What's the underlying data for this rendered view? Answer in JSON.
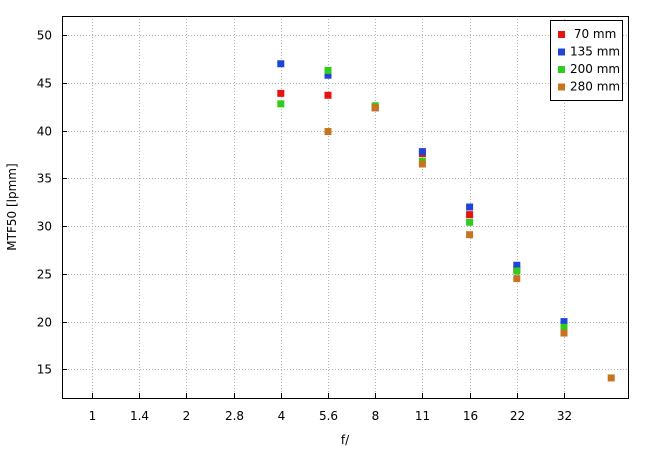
{
  "chart_data": {
    "type": "scatter",
    "xlabel": "f/",
    "ylabel": "MTF50 [lpmm]",
    "x_categories": [
      "1",
      "1.4",
      "2",
      "2.8",
      "4",
      "5.6",
      "8",
      "11",
      "16",
      "22",
      "32"
    ],
    "ylim": [
      12,
      52
    ],
    "y_ticks": [
      15,
      20,
      25,
      30,
      35,
      40,
      45,
      50
    ],
    "grid": true,
    "legend_position": "top-right",
    "series": [
      {
        "name": " 70 mm",
        "color": "#e8120f",
        "points": [
          [
            "4",
            43.9
          ],
          [
            "5.6",
            43.7
          ],
          [
            "8",
            42.4
          ],
          [
            "11",
            37.6
          ],
          [
            "16",
            31.2
          ],
          [
            "22",
            25.5
          ],
          [
            "32",
            19.5
          ]
        ]
      },
      {
        "name": "135 mm",
        "color": "#1f45d6",
        "points": [
          [
            "4",
            47.0
          ],
          [
            "5.6",
            45.8
          ],
          [
            "8",
            42.4
          ],
          [
            "11",
            37.8
          ],
          [
            "16",
            32.0
          ],
          [
            "22",
            25.9
          ],
          [
            "32",
            20.0
          ]
        ]
      },
      {
        "name": "200 mm",
        "color": "#2ecc1c",
        "points": [
          [
            "4",
            42.8
          ],
          [
            "5.6",
            46.3
          ],
          [
            "8",
            42.6
          ],
          [
            "11",
            36.8
          ],
          [
            "16",
            30.4
          ],
          [
            "22",
            25.3
          ],
          [
            "32",
            19.4
          ]
        ]
      },
      {
        "name": "280 mm",
        "color": "#c8731e",
        "points": [
          [
            "5.6",
            39.9
          ],
          [
            "8",
            42.4
          ],
          [
            "11",
            36.5
          ],
          [
            "16",
            29.1
          ],
          [
            "22",
            24.5
          ],
          [
            "32",
            18.8
          ],
          [
            "45",
            14.1
          ]
        ]
      }
    ]
  }
}
